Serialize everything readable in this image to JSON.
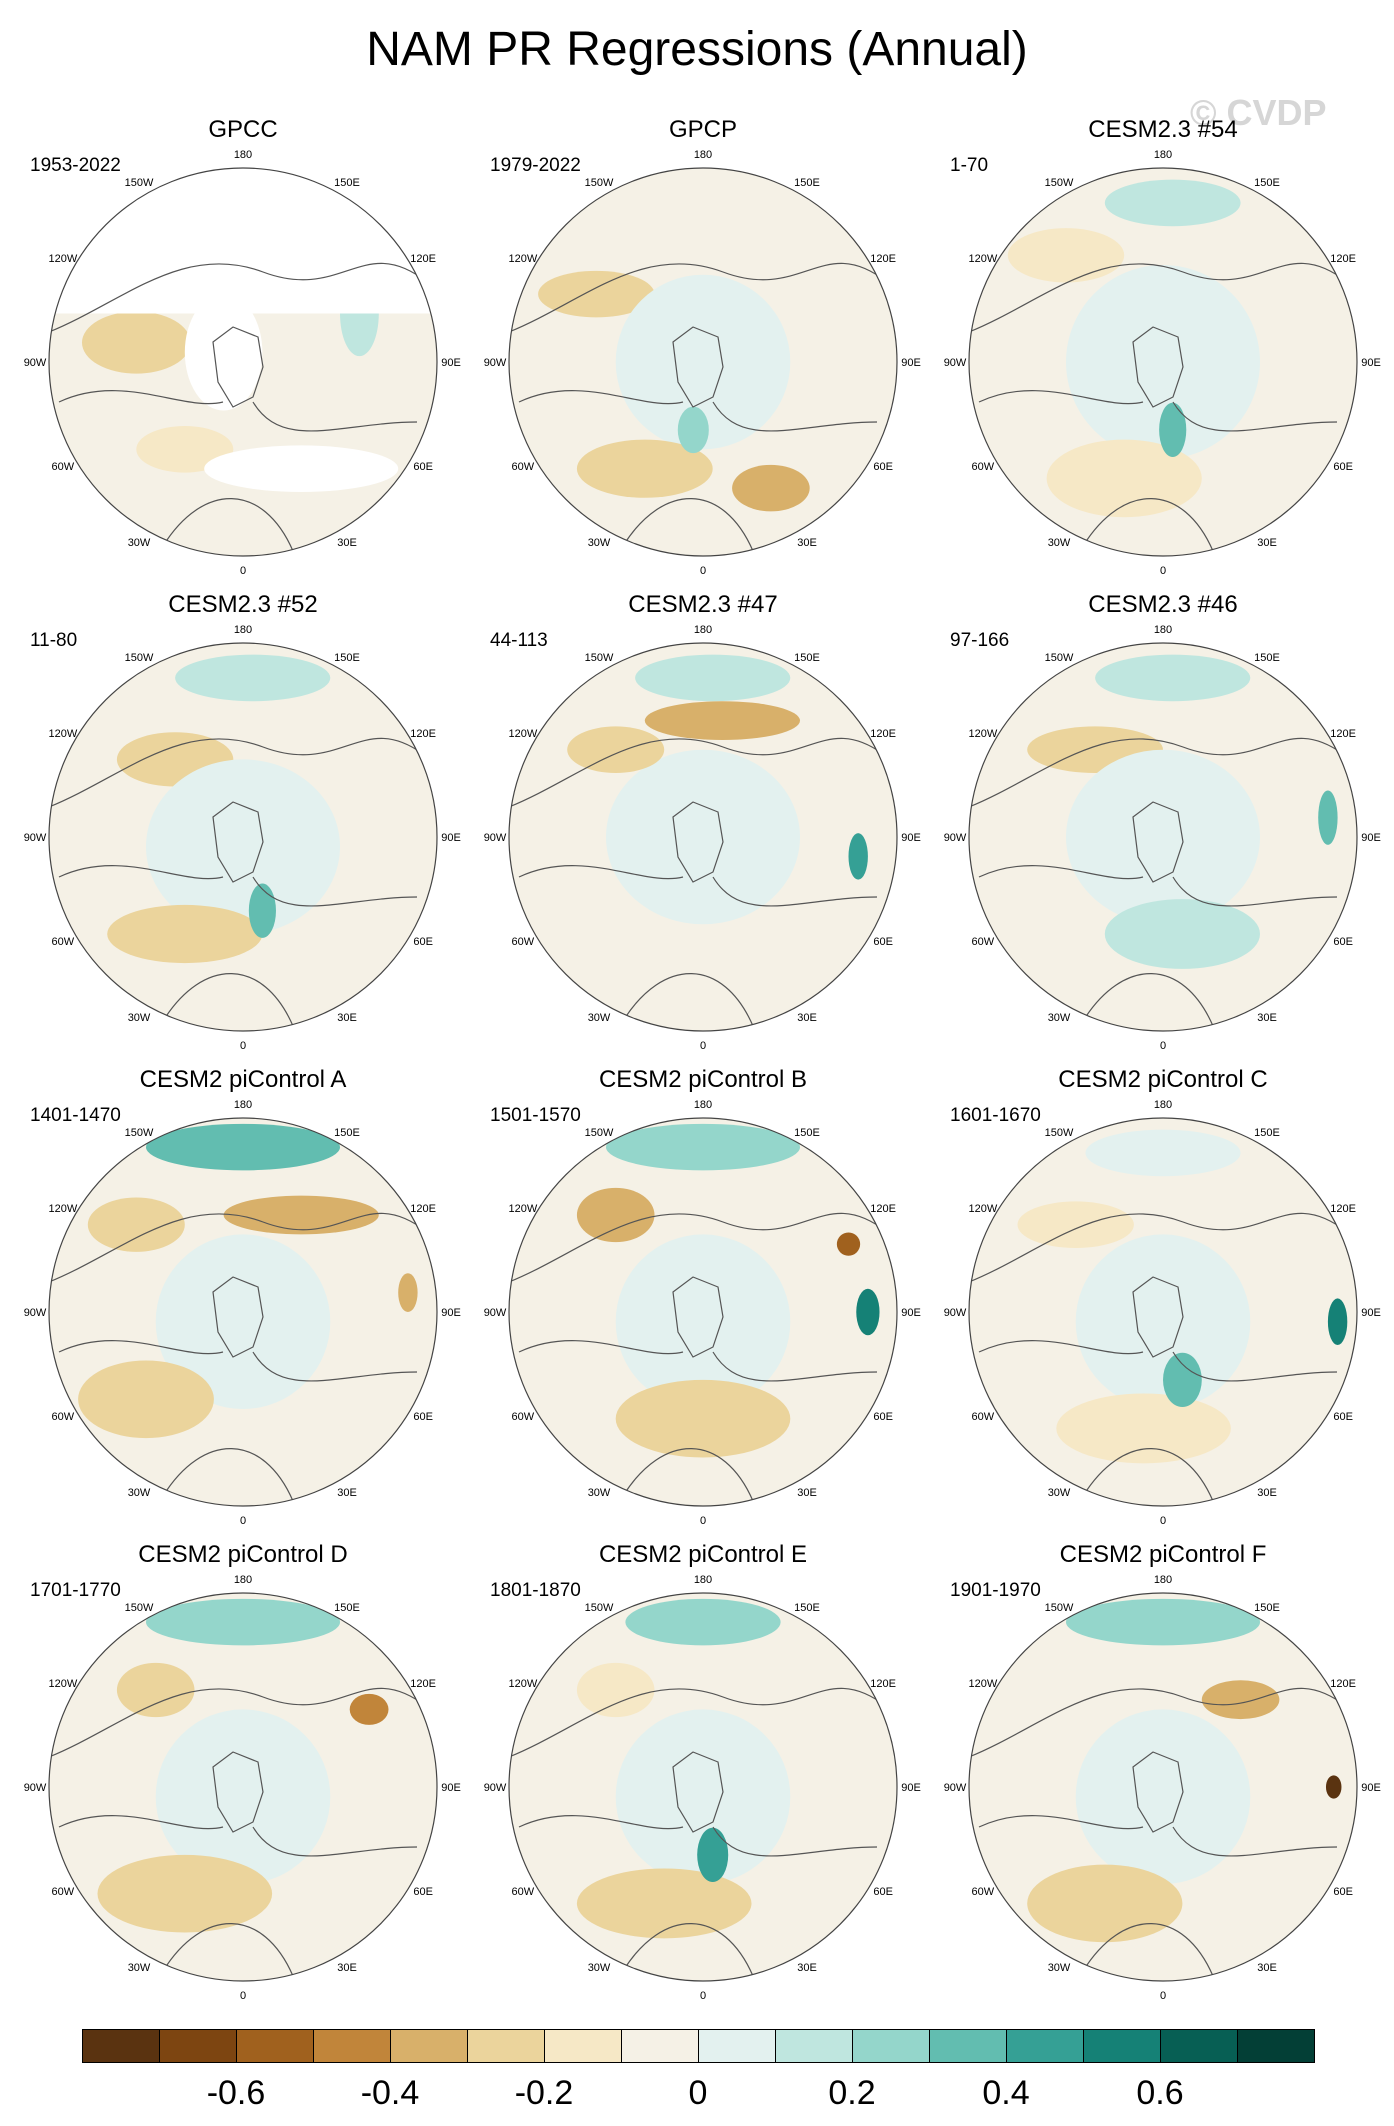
{
  "title": "NAM PR Regressions (Annual)",
  "watermark": "© CVDP",
  "lon_labels": [
    {
      "text": "180",
      "angle": 180
    },
    {
      "text": "150E",
      "angle": 150
    },
    {
      "text": "120E",
      "angle": 120
    },
    {
      "text": "90E",
      "angle": 90
    },
    {
      "text": "60E",
      "angle": 60
    },
    {
      "text": "30E",
      "angle": 30
    },
    {
      "text": "0",
      "angle": 0
    },
    {
      "text": "30W",
      "angle": -30
    },
    {
      "text": "60W",
      "angle": -60
    },
    {
      "text": "90W",
      "angle": -90
    },
    {
      "text": "120W",
      "angle": -120
    },
    {
      "text": "150W",
      "angle": -150
    }
  ],
  "panels": [
    {
      "title": "GPCC",
      "years": "1953-2022",
      "masked": true
    },
    {
      "title": "GPCP",
      "years": "1979-2022",
      "masked": false
    },
    {
      "title": "CESM2.3 #54",
      "years": "1-70",
      "masked": false
    },
    {
      "title": "CESM2.3 #52",
      "years": "11-80",
      "masked": false
    },
    {
      "title": "CESM2.3 #47",
      "years": "44-113",
      "masked": false
    },
    {
      "title": "CESM2.3 #46",
      "years": "97-166",
      "masked": false
    },
    {
      "title": "CESM2 piControl A",
      "years": "1401-1470",
      "masked": false
    },
    {
      "title": "CESM2 piControl B",
      "years": "1501-1570",
      "masked": false
    },
    {
      "title": "CESM2 piControl C",
      "years": "1601-1670",
      "masked": false
    },
    {
      "title": "CESM2 piControl D",
      "years": "1701-1770",
      "masked": false
    },
    {
      "title": "CESM2 piControl E",
      "years": "1801-1870",
      "masked": false
    },
    {
      "title": "CESM2 piControl F",
      "years": "1901-1970",
      "masked": false
    }
  ],
  "colorbar": {
    "colors": [
      "#5a3310",
      "#7d4511",
      "#a0611e",
      "#c1853a",
      "#d8b06a",
      "#ebd49c",
      "#f6e8c6",
      "#f5f1e6",
      "#e3f1ef",
      "#bfe6df",
      "#94d6cb",
      "#62bdb0",
      "#35a095",
      "#158176",
      "#075f54",
      "#033f36"
    ],
    "labels": [
      {
        "text": "-0.6",
        "index": 2
      },
      {
        "text": "-0.4",
        "index": 4
      },
      {
        "text": "-0.2",
        "index": 6
      },
      {
        "text": "0",
        "index": 8
      },
      {
        "text": "0.2",
        "index": 10
      },
      {
        "text": "0.4",
        "index": 12
      },
      {
        "text": "0.6",
        "index": 14
      }
    ]
  }
}
